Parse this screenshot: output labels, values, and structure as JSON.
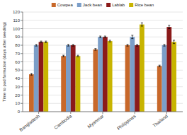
{
  "chart_data": {
    "type": "bar",
    "categories": [
      "Bangladesh",
      "Cambodia",
      "Myanmar",
      "Philippines",
      "Thailand"
    ],
    "series": [
      {
        "name": "Cowpea",
        "color": "#C8682A",
        "values": [
          45,
          67,
          75,
          80,
          55
        ],
        "errors": [
          1,
          1,
          1,
          1,
          1
        ]
      },
      {
        "name": "Jack bean",
        "color": "#7B9EC8",
        "values": [
          80,
          80,
          90,
          90,
          80
        ],
        "errors": [
          1,
          1,
          1,
          2,
          1
        ]
      },
      {
        "name": "Lablab",
        "color": "#8B1A1A",
        "values": [
          84,
          80,
          90,
          80,
          102
        ],
        "errors": [
          1,
          1,
          1,
          1,
          2
        ]
      },
      {
        "name": "Rice bean",
        "color": "#C8B400",
        "values": [
          84,
          67,
          85,
          105,
          84
        ],
        "errors": [
          1,
          1,
          1,
          2,
          2
        ]
      }
    ],
    "ylabel": "Time to pod formation (days after seeding)",
    "ylim": [
      0,
      120
    ],
    "yticks": [
      0,
      10,
      20,
      30,
      40,
      50,
      60,
      70,
      80,
      90,
      100,
      110,
      120
    ],
    "grid": true,
    "legend": "upper center"
  }
}
